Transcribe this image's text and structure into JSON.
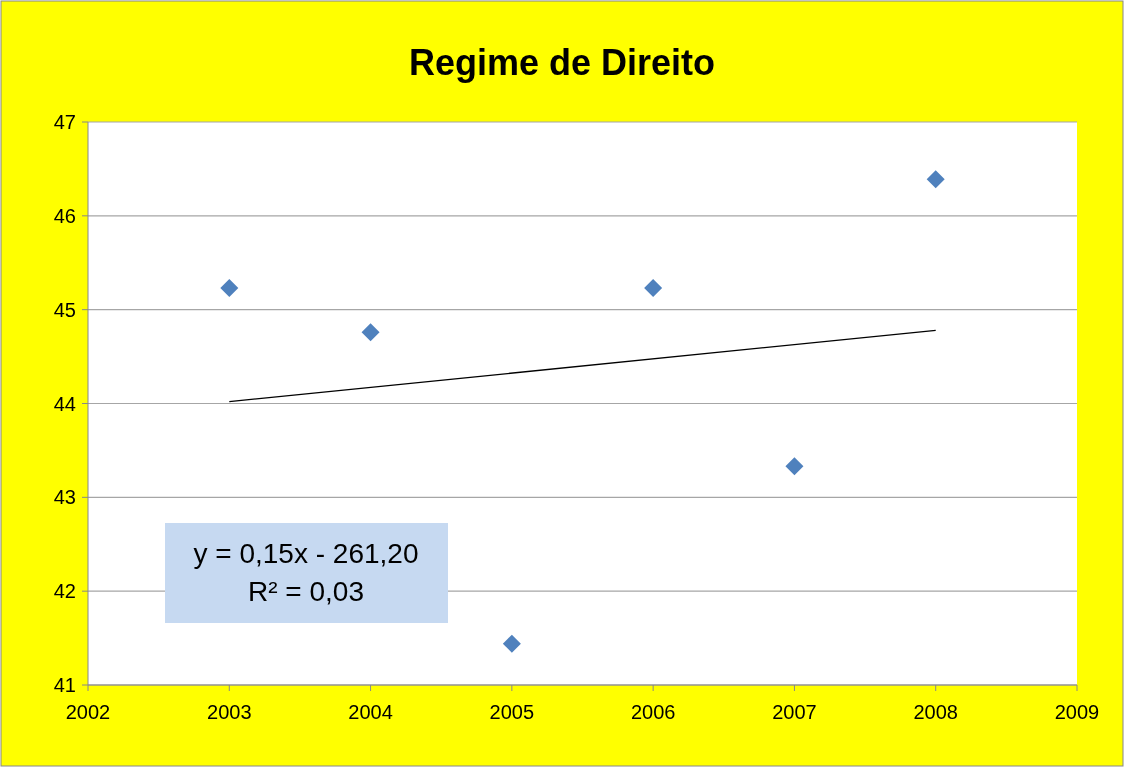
{
  "chart_data": {
    "type": "scatter",
    "title": "Regime de Direito",
    "x": [
      2003,
      2004,
      2005,
      2006,
      2007,
      2008
    ],
    "series": [
      {
        "color": "#4f81bd",
        "marker": "diamond",
        "values": [
          45.23,
          44.76,
          41.44,
          45.23,
          43.33,
          46.39
        ]
      },
      {
        "type": "line",
        "color": "#000000",
        "marker": "none",
        "line_style": "solid",
        "x": [
          2003,
          2008
        ],
        "values": [
          44.02,
          44.78
        ]
      }
    ],
    "xlim": [
      2002,
      2009
    ],
    "xticks": [
      2002,
      2003,
      2004,
      2005,
      2006,
      2007,
      2008,
      2009
    ],
    "ylim": [
      41,
      47
    ],
    "yticks": [
      41,
      42,
      43,
      44,
      45,
      46,
      47
    ],
    "grid": "y",
    "annotations": [
      "y = 0,15x - 261,20",
      "R² = 0,03"
    ]
  }
}
